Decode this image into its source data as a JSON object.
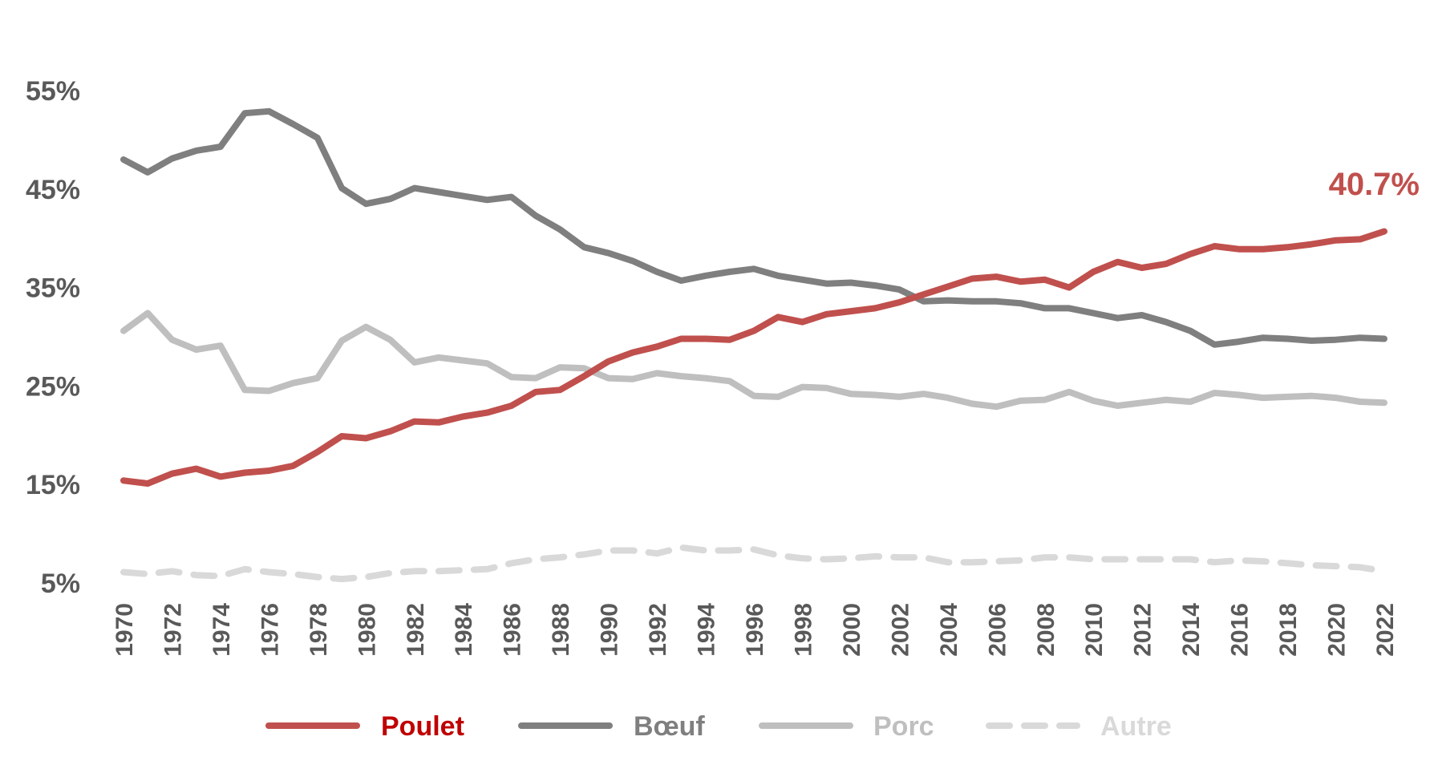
{
  "chart_data": {
    "type": "line",
    "title": "",
    "xlabel": "",
    "ylabel": "",
    "ylim": [
      5,
      55
    ],
    "xlim": [
      1970,
      2022
    ],
    "y_ticks": [
      5,
      15,
      25,
      35,
      45,
      55
    ],
    "y_tick_labels": [
      "5%",
      "15%",
      "25%",
      "35%",
      "45%",
      "55%"
    ],
    "x_ticks": [
      1970,
      1972,
      1974,
      1976,
      1978,
      1980,
      1982,
      1984,
      1986,
      1988,
      1990,
      1992,
      1994,
      1996,
      1998,
      2000,
      2002,
      2004,
      2006,
      2008,
      2010,
      2012,
      2014,
      2016,
      2018,
      2020,
      2022
    ],
    "x_tick_labels": [
      "1970",
      "1972",
      "1974",
      "1976",
      "1978",
      "1980",
      "1982",
      "1984",
      "1986",
      "1988",
      "1990",
      "1992",
      "1994",
      "1996",
      "1998",
      "2000",
      "2002",
      "2004",
      "2006",
      "2008",
      "2010",
      "2012",
      "2014",
      "2016",
      "2018",
      "2020",
      "2022"
    ],
    "grid": false,
    "legend_position": "bottom",
    "x": [
      1970,
      1971,
      1972,
      1973,
      1974,
      1975,
      1976,
      1977,
      1978,
      1979,
      1980,
      1981,
      1982,
      1983,
      1984,
      1985,
      1986,
      1987,
      1988,
      1989,
      1990,
      1991,
      1992,
      1993,
      1994,
      1995,
      1996,
      1997,
      1998,
      1999,
      2000,
      2001,
      2002,
      2003,
      2004,
      2005,
      2006,
      2007,
      2008,
      2009,
      2010,
      2011,
      2012,
      2013,
      2014,
      2015,
      2016,
      2017,
      2018,
      2019,
      2020,
      2021,
      2022
    ],
    "series": [
      {
        "name": "Poulet",
        "color": "#c0504d",
        "label_color": "#c00000",
        "dashed": false,
        "values": [
          15.4,
          15.1,
          16.1,
          16.6,
          15.8,
          16.2,
          16.4,
          16.9,
          18.3,
          19.9,
          19.7,
          20.4,
          21.4,
          21.3,
          21.9,
          22.3,
          23.0,
          24.4,
          24.6,
          26.0,
          27.5,
          28.4,
          29.0,
          29.8,
          29.8,
          29.7,
          30.6,
          32.0,
          31.5,
          32.3,
          32.6,
          32.9,
          33.5,
          34.3,
          35.1,
          35.9,
          36.1,
          35.6,
          35.8,
          35.0,
          36.6,
          37.6,
          37.0,
          37.4,
          38.4,
          39.2,
          38.9,
          38.9,
          39.1,
          39.4,
          39.8,
          39.9,
          40.7
        ]
      },
      {
        "name": "Bœuf",
        "color": "#7f7f7f",
        "label_color": "#7f7f7f",
        "dashed": false,
        "values": [
          48.0,
          46.7,
          48.1,
          48.9,
          49.3,
          52.7,
          52.9,
          51.6,
          50.2,
          45.1,
          43.5,
          44.0,
          45.1,
          44.7,
          44.3,
          43.9,
          44.2,
          42.3,
          40.9,
          39.1,
          38.5,
          37.7,
          36.6,
          35.7,
          36.2,
          36.6,
          36.9,
          36.2,
          35.8,
          35.4,
          35.5,
          35.2,
          34.8,
          33.6,
          33.7,
          33.6,
          33.6,
          33.4,
          32.9,
          32.9,
          32.4,
          31.9,
          32.2,
          31.5,
          30.6,
          29.2,
          29.5,
          29.9,
          29.8,
          29.6,
          29.7,
          29.9,
          29.8
        ]
      },
      {
        "name": "Porc",
        "color": "#bfbfbf",
        "label_color": "#bfbfbf",
        "dashed": false,
        "values": [
          30.6,
          32.4,
          29.7,
          28.7,
          29.1,
          24.6,
          24.5,
          25.3,
          25.8,
          29.6,
          31.0,
          29.7,
          27.4,
          27.9,
          27.6,
          27.3,
          25.9,
          25.8,
          26.9,
          26.8,
          25.8,
          25.7,
          26.3,
          26.0,
          25.8,
          25.5,
          24.0,
          23.9,
          24.9,
          24.8,
          24.2,
          24.1,
          23.9,
          24.2,
          23.8,
          23.2,
          22.9,
          23.5,
          23.6,
          24.4,
          23.5,
          23.0,
          23.3,
          23.6,
          23.4,
          24.3,
          24.1,
          23.8,
          23.9,
          24.0,
          23.8,
          23.4,
          23.3
        ]
      },
      {
        "name": "Autre",
        "color": "#d9d9d9",
        "label_color": "#d9d9d9",
        "dashed": true,
        "values": [
          6.1,
          5.9,
          6.2,
          5.8,
          5.7,
          6.4,
          6.1,
          5.9,
          5.6,
          5.4,
          5.6,
          6.0,
          6.2,
          6.2,
          6.3,
          6.4,
          7.0,
          7.4,
          7.6,
          7.9,
          8.3,
          8.3,
          8.0,
          8.6,
          8.3,
          8.3,
          8.4,
          7.8,
          7.5,
          7.4,
          7.5,
          7.7,
          7.6,
          7.6,
          7.1,
          7.1,
          7.2,
          7.3,
          7.6,
          7.6,
          7.4,
          7.4,
          7.4,
          7.4,
          7.4,
          7.1,
          7.3,
          7.2,
          7.0,
          6.8,
          6.7,
          6.6,
          6.2
        ]
      }
    ],
    "annotation": {
      "text": "40.7%",
      "color": "#c0504d"
    }
  }
}
